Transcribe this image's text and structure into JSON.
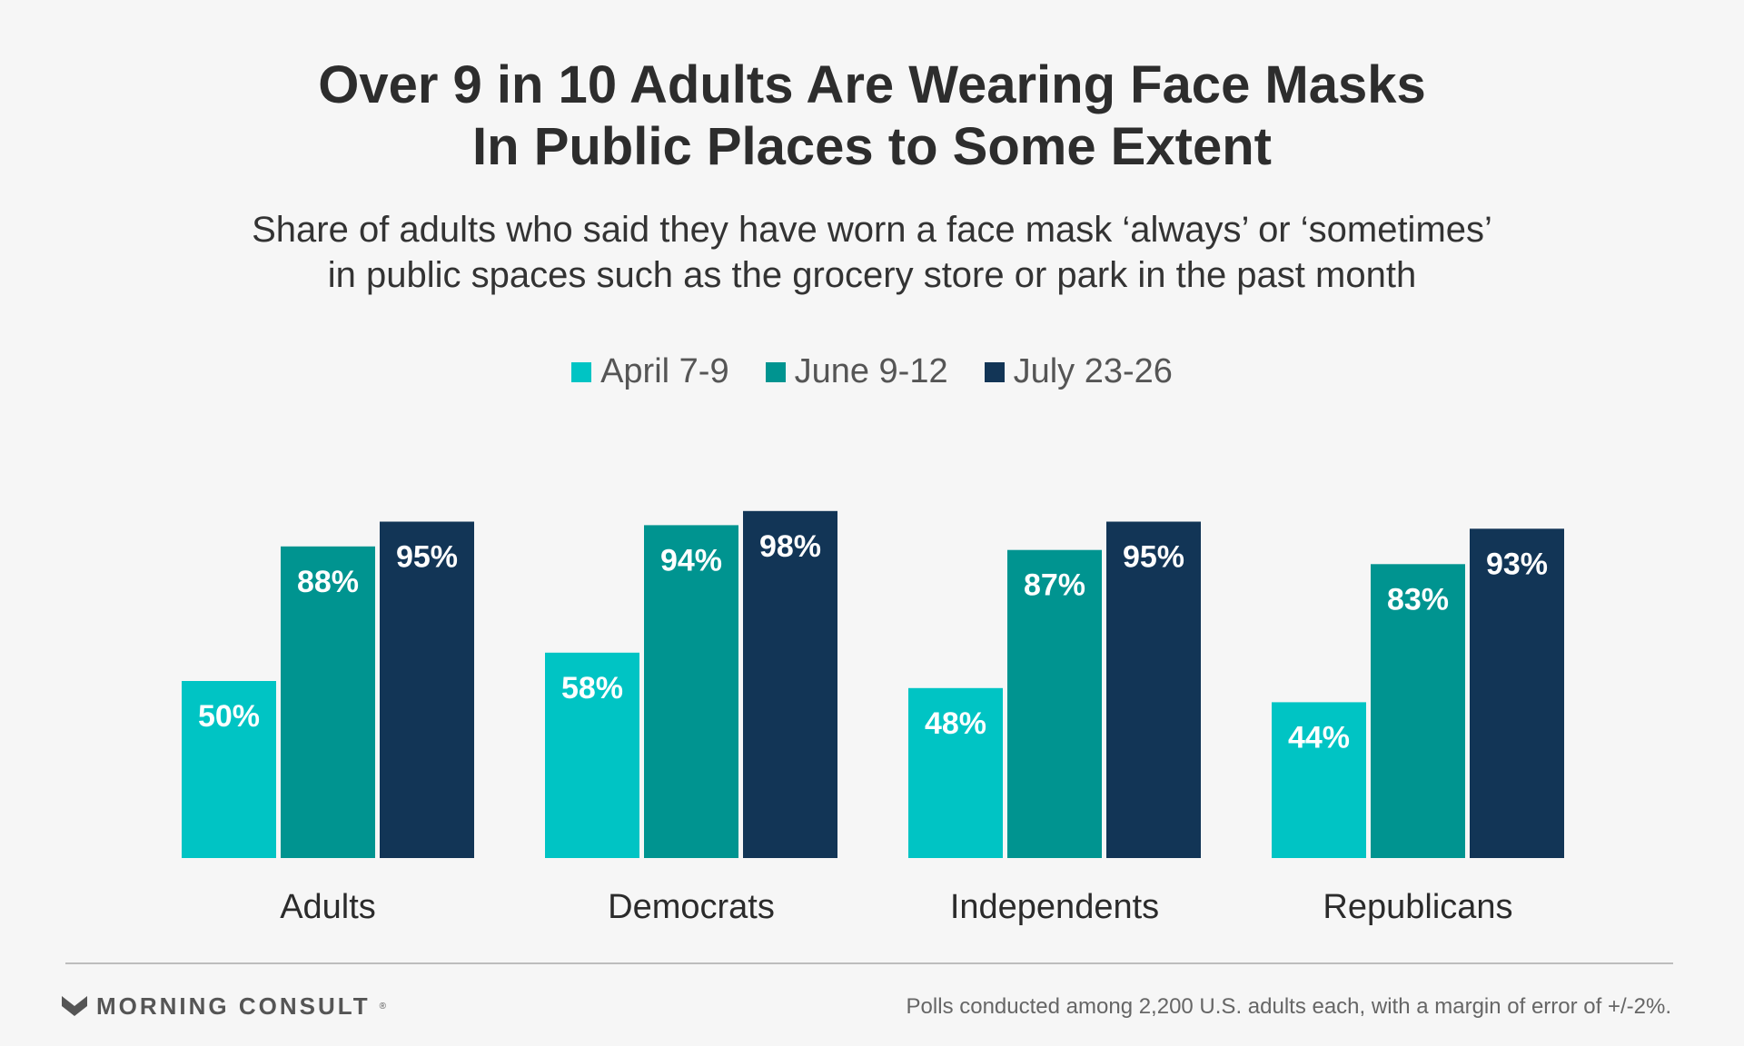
{
  "header": {
    "title_line_1": "Over 9 in 10 Adults Are Wearing Face Masks",
    "title_line_2": "In Public Places to Some Extent",
    "subtitle_line_1": "Share of adults who said they have worn a face mask ‘always’ or ‘sometimes’",
    "subtitle_line_2": "in public spaces such as the grocery store or park in the past month"
  },
  "chart_data": {
    "type": "bar",
    "categories": [
      "Adults",
      "Democrats",
      "Independents",
      "Republicans"
    ],
    "series": [
      {
        "name": "April 7-9",
        "color": "#00c4c4",
        "values": [
          50,
          58,
          48,
          44
        ],
        "labels": [
          "50%",
          "58%",
          "48%",
          "44%"
        ]
      },
      {
        "name": "June 9-12",
        "color": "#009490",
        "values": [
          88,
          94,
          87,
          83
        ],
        "labels": [
          "88%",
          "94%",
          "87%",
          "83%"
        ]
      },
      {
        "name": "July 23-26",
        "color": "#123556",
        "values": [
          95,
          98,
          95,
          93
        ],
        "labels": [
          "95%",
          "98%",
          "95%",
          "93%"
        ]
      }
    ],
    "ylim": [
      0,
      100
    ],
    "grid": false,
    "legend": "top-center"
  },
  "footer": {
    "brand": "MORNING CONSULT",
    "brand_mark": "®",
    "note": "Polls conducted among 2,200 U.S. adults each, with a margin of error of +/-2%."
  }
}
